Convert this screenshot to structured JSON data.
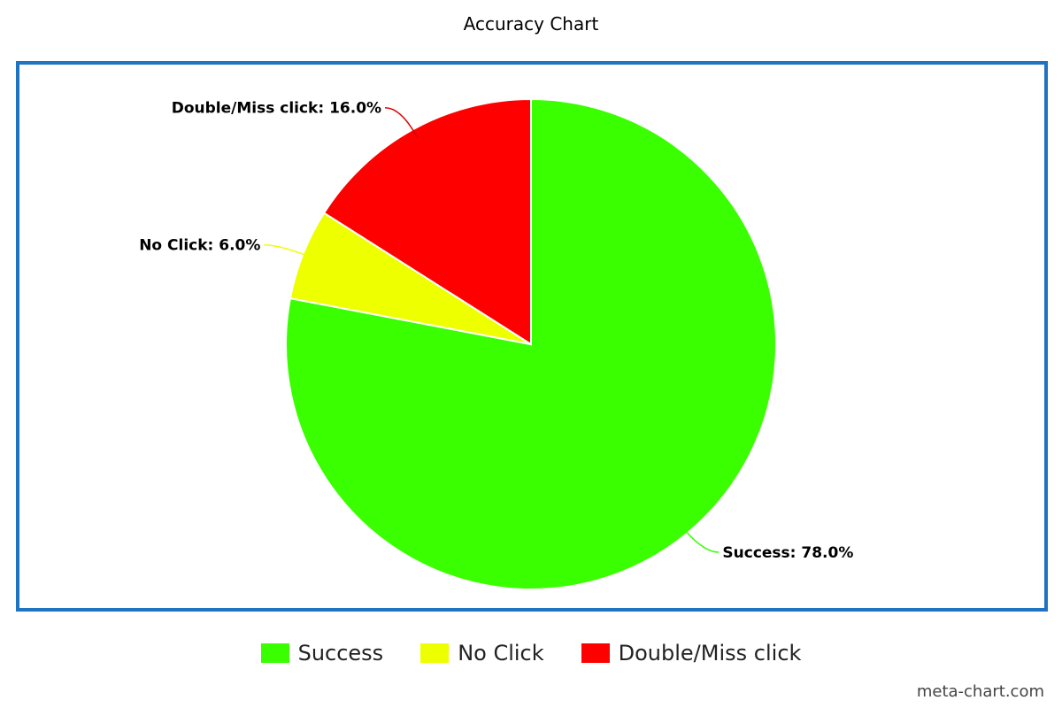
{
  "chart_data": {
    "type": "pie",
    "title": "Accuracy Chart",
    "slices": [
      {
        "name": "Success",
        "value": 78.0,
        "label": "Success: 78.0%",
        "color": "#39ff00",
        "leader_color": "#39ff00"
      },
      {
        "name": "No Click",
        "value": 6.0,
        "label": "No Click: 6.0%",
        "color": "#eeff00",
        "leader_color": "#eeff00"
      },
      {
        "name": "Double/Miss click",
        "value": 16.0,
        "label": "Double/Miss click: 16.0%",
        "color": "#ff0000",
        "leader_color": "#dd0000"
      }
    ],
    "legend": {
      "position": "bottom",
      "items": [
        "Success",
        "No Click",
        "Double/Miss click"
      ]
    },
    "frame_color": "#1f73c0",
    "credit": "meta-chart.com"
  }
}
